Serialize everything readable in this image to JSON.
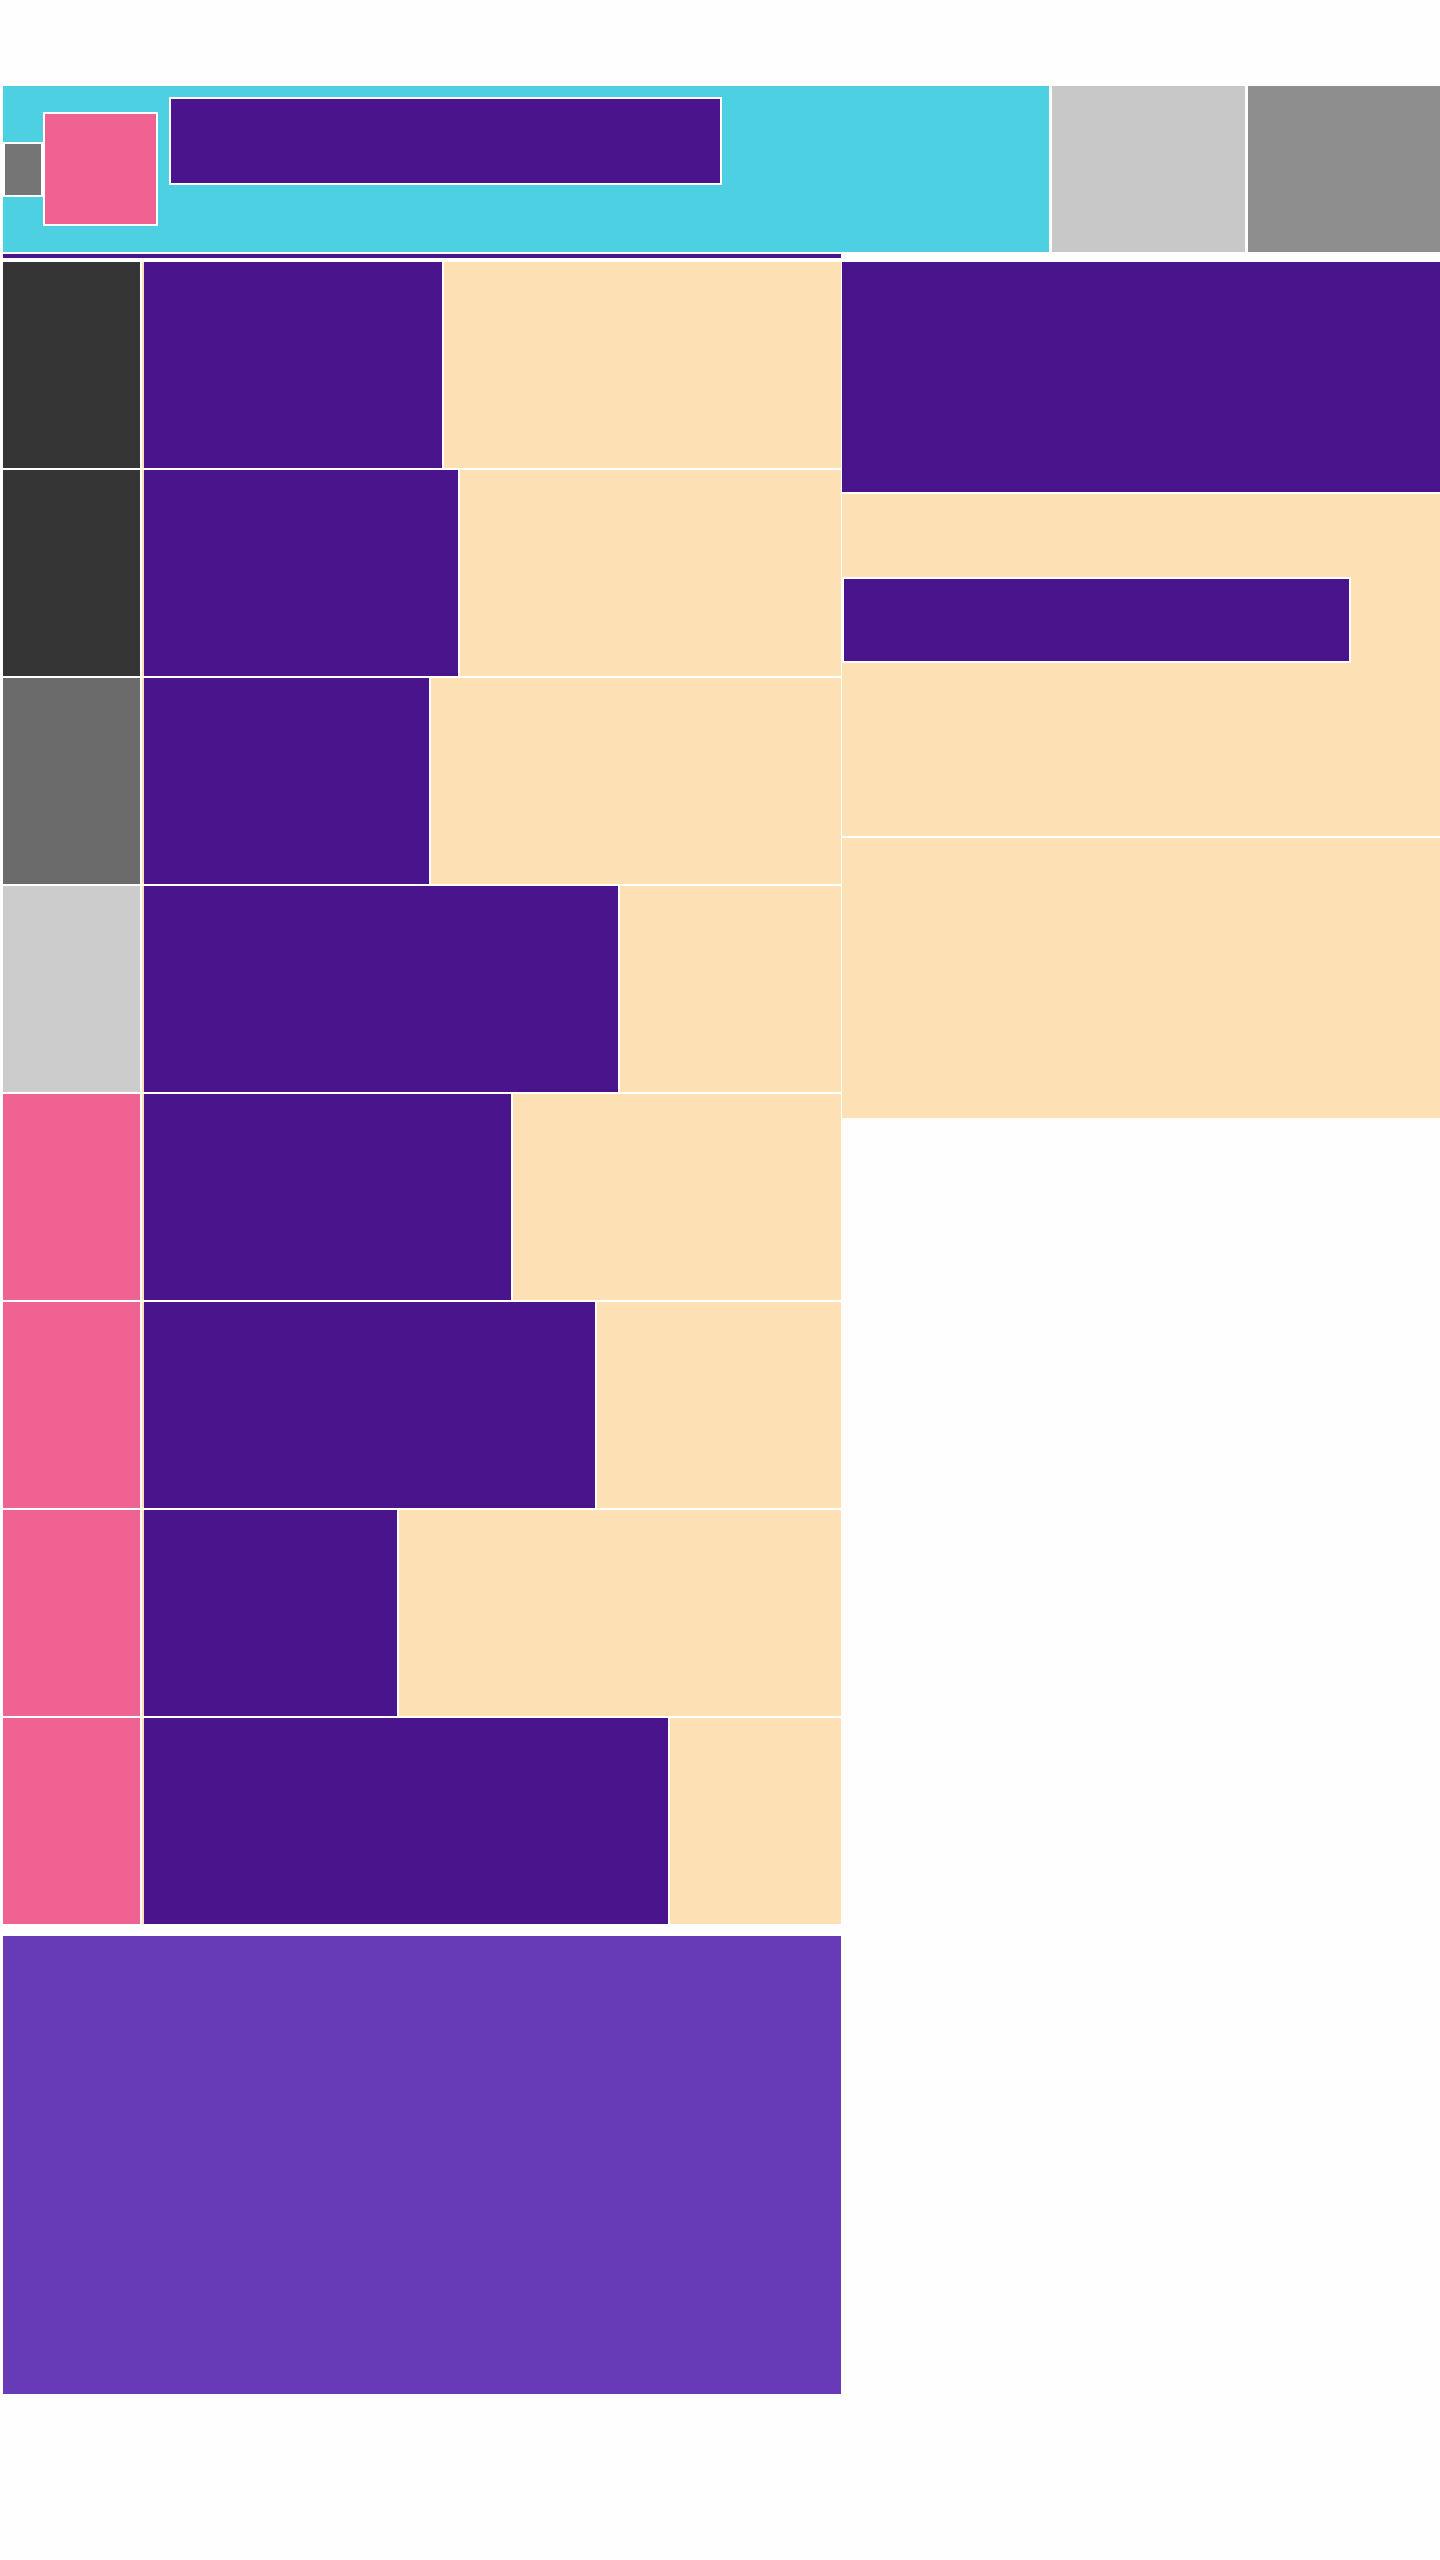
{
  "header": {
    "menu_label": "",
    "site_title": "",
    "action_1": "",
    "action_2": ""
  },
  "list": {
    "items": [
      {
        "title": "",
        "meta": ""
      },
      {
        "title": "",
        "meta": ""
      },
      {
        "title": "",
        "meta": ""
      },
      {
        "title": "",
        "meta": ""
      },
      {
        "title": "",
        "meta": ""
      },
      {
        "title": "",
        "meta": ""
      },
      {
        "title": "",
        "meta": ""
      },
      {
        "title": "",
        "meta": ""
      }
    ]
  },
  "sidebar": {
    "heading": "",
    "link_label": "",
    "panel_1_text": "",
    "panel_2_text": ""
  },
  "footer": {
    "load_more_label": ""
  },
  "colors": {
    "header": "#4dd0e1",
    "primary": "#4a148c",
    "accent": "#f06292",
    "surface": "#fde0b3",
    "secondary": "#673ab7",
    "thumb_dark": "#353535",
    "thumb_mid": "#6b6b6b",
    "thumb_light": "#cccccc"
  }
}
